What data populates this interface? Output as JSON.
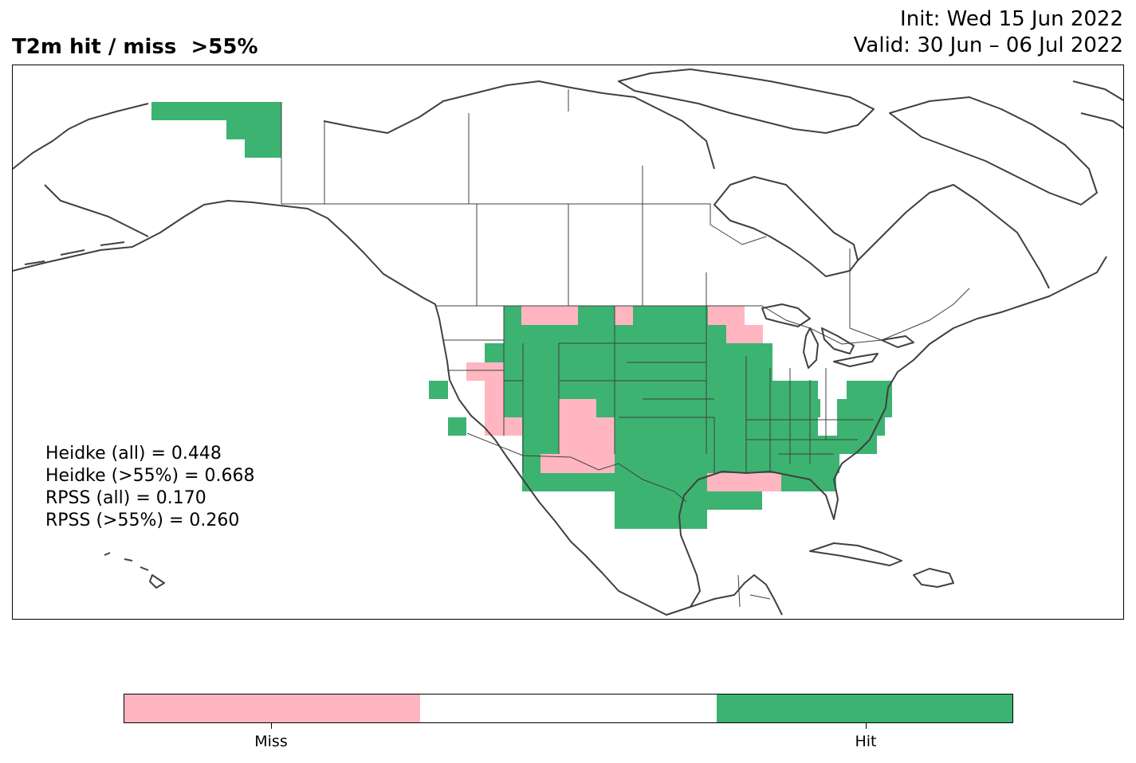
{
  "title": "T2m hit / miss  >55%",
  "init_label": "Init: Wed 15 Jun 2022",
  "valid_label": "Valid: 30 Jun – 06 Jul 2022",
  "colors": {
    "miss": "#ffb6c1",
    "neutral": "#ffffff",
    "hit": "#3cb371",
    "coast": "#404040"
  },
  "scores": [
    "Heidke (all) = 0.448",
    "Heidke (>55%) = 0.668",
    "RPSS (all) = 0.170",
    "RPSS (>55%) = 0.260"
  ],
  "legend": {
    "categories": [
      "Miss",
      "",
      "Hit"
    ],
    "labels": {
      "miss": "Miss",
      "hit": "Hit"
    }
  }
}
